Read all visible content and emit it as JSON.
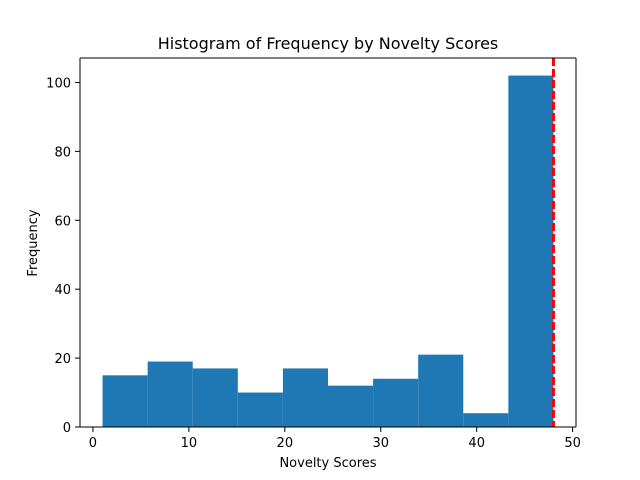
{
  "chart_data": {
    "type": "bar",
    "title": "Histogram of Frequency by Novelty Scores",
    "xlabel": "Novelty Scores",
    "ylabel": "Frequency",
    "bin_edges": [
      1.0,
      5.7,
      10.4,
      15.1,
      19.8,
      24.5,
      29.2,
      33.9,
      38.6,
      43.3,
      48.0
    ],
    "values": [
      15,
      19,
      17,
      10,
      17,
      12,
      14,
      21,
      4,
      102
    ],
    "xlim": [
      -1.35,
      50.35
    ],
    "ylim": [
      0,
      107.1
    ],
    "xticks": [
      0,
      10,
      20,
      30,
      40,
      50
    ],
    "yticks": [
      0,
      20,
      40,
      60,
      80,
      100
    ],
    "reference_line": {
      "x": 48,
      "style": "dashed",
      "color": "#ff0000"
    },
    "bar_color": "#1f77b4",
    "grid": false
  }
}
